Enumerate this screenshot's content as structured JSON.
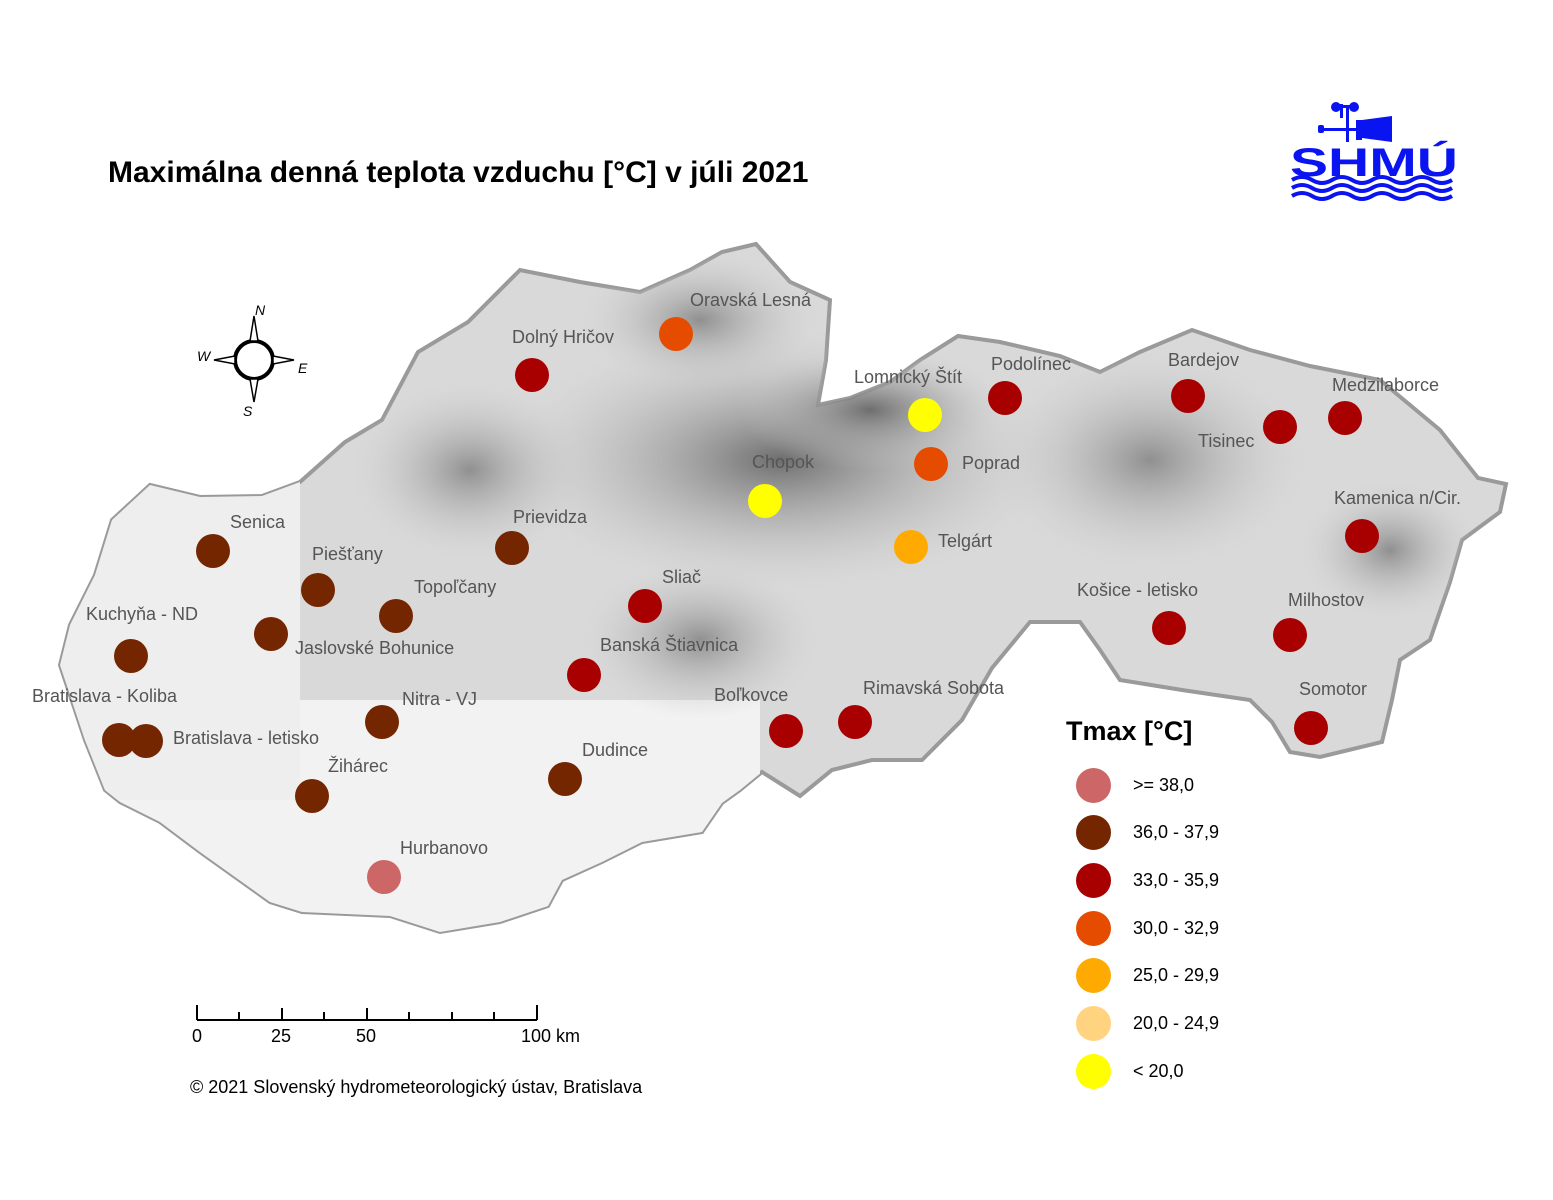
{
  "title": "Maximálna denná teplota vzduchu [°C] v júli 2021",
  "logo": {
    "text": "SHMÚ",
    "color": "#0a14f0"
  },
  "compass": {
    "n": "N",
    "e": "E",
    "s": "S",
    "w": "W"
  },
  "legend": {
    "title": "Tmax [°C]",
    "classes": [
      {
        "label": ">= 38,0",
        "color": "#cd6666"
      },
      {
        "label": "36,0 - 37,9",
        "color": "#732600"
      },
      {
        "label": "33,0 - 35,9",
        "color": "#a80000"
      },
      {
        "label": "30,0 - 32,9",
        "color": "#e64c00"
      },
      {
        "label": "25,0 - 29,9",
        "color": "#ffaa00"
      },
      {
        "label": "20,0 - 24,9",
        "color": "#ffd37f"
      },
      {
        "label": "< 20,0",
        "color": "#ffff00"
      }
    ]
  },
  "stations": [
    {
      "name": "Oravská Lesná",
      "class": 3
    },
    {
      "name": "Dolný Hričov",
      "class": 2
    },
    {
      "name": "Lomnický Štít",
      "class": 6
    },
    {
      "name": "Podolínec",
      "class": 2
    },
    {
      "name": "Bardejov",
      "class": 2
    },
    {
      "name": "Tisinec",
      "class": 2
    },
    {
      "name": "Medzilaborce",
      "class": 2
    },
    {
      "name": "Chopok",
      "class": 6
    },
    {
      "name": "Poprad",
      "class": 3
    },
    {
      "name": "Kamenica n/Cir.",
      "class": 2
    },
    {
      "name": "Telgárt",
      "class": 4
    },
    {
      "name": "Senica",
      "class": 1
    },
    {
      "name": "Prievidza",
      "class": 1
    },
    {
      "name": "Piešťany",
      "class": 1
    },
    {
      "name": "Topoľčany",
      "class": 1
    },
    {
      "name": "Sliač",
      "class": 2
    },
    {
      "name": "Košice - letisko",
      "class": 2
    },
    {
      "name": "Milhostov",
      "class": 2
    },
    {
      "name": "Kuchyňa - ND",
      "class": 1
    },
    {
      "name": "Jaslovské Bohunice",
      "class": 1
    },
    {
      "name": "Banská Štiavnica",
      "class": 2
    },
    {
      "name": "Bratislava - Koliba",
      "class": 1
    },
    {
      "name": "Bratislava - letisko",
      "class": 1
    },
    {
      "name": "Nitra - VJ",
      "class": 1
    },
    {
      "name": "Boľkovce",
      "class": 2
    },
    {
      "name": "Rimavská Sobota",
      "class": 2
    },
    {
      "name": "Somotor",
      "class": 2
    },
    {
      "name": "Žihárec",
      "class": 1
    },
    {
      "name": "Dudince",
      "class": 1
    },
    {
      "name": "Hurbanovo",
      "class": 0
    }
  ],
  "scale": {
    "labels": [
      "0",
      "25",
      "50",
      "100 km"
    ]
  },
  "copyright": "© 2021 Slovenský hydrometeorologický ústav, Bratislava"
}
